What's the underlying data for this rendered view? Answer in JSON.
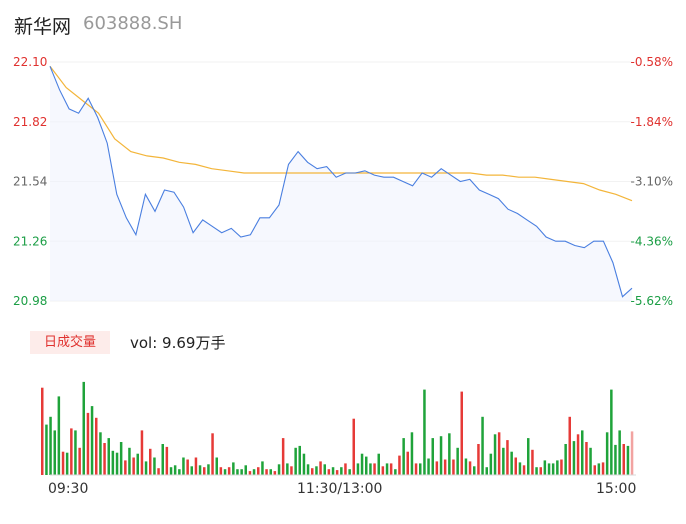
{
  "header": {
    "name": "新华网",
    "code": "603888.SH"
  },
  "chart_data": {
    "type": "line",
    "price_axis": {
      "ticks": [
        "22.10",
        "21.82",
        "21.54",
        "21.26",
        "20.98"
      ],
      "values": [
        22.1,
        21.82,
        21.54,
        21.26,
        20.98
      ],
      "ylim": [
        20.98,
        22.1
      ]
    },
    "pct_axis": {
      "ticks": [
        "-0.58%",
        "-1.84%",
        "-3.10%",
        "-4.36%",
        "-5.62%"
      ]
    },
    "time_ticks": [
      "09:30",
      "11:30/13:00",
      "15:00"
    ],
    "series": [
      {
        "values": [
          22.08,
          21.97,
          21.88,
          21.86,
          21.93,
          21.84,
          21.72,
          21.48,
          21.37,
          21.29,
          21.48,
          21.4,
          21.5,
          21.49,
          21.42,
          21.3,
          21.36,
          21.33,
          21.3,
          21.32,
          21.28,
          21.29,
          21.37,
          21.37,
          21.43,
          21.62,
          21.68,
          21.63,
          21.6,
          21.61,
          21.56,
          21.58,
          21.58,
          21.59,
          21.57,
          21.56,
          21.56,
          21.54,
          21.52,
          21.58,
          21.56,
          21.6,
          21.57,
          21.54,
          21.55,
          21.5,
          21.48,
          21.46,
          21.41,
          21.39,
          21.36,
          21.33,
          21.28,
          21.26,
          21.26,
          21.24,
          21.23,
          21.26,
          21.26,
          21.16,
          21.0,
          21.04
        ]
      },
      {
        "values": [
          22.08,
          21.98,
          21.92,
          21.86,
          21.74,
          21.68,
          21.66,
          21.65,
          21.63,
          21.62,
          21.6,
          21.59,
          21.58,
          21.58,
          21.58,
          21.58,
          21.58,
          21.58,
          21.58,
          21.58,
          21.58,
          21.58,
          21.58,
          21.58,
          21.58,
          21.58,
          21.58,
          21.57,
          21.57,
          21.56,
          21.56,
          21.55,
          21.54,
          21.53,
          21.5,
          21.48,
          21.45
        ]
      }
    ],
    "volume": {
      "label": "日成交量",
      "total": "vol: 9.69万手",
      "bars": [
        0.9,
        0.52,
        0.6,
        0.46,
        0.81,
        0.24,
        0.23,
        0.48,
        0.46,
        0.28,
        0.96,
        0.64,
        0.71,
        0.59,
        0.44,
        0.33,
        0.38,
        0.25,
        0.23,
        0.34,
        0.15,
        0.28,
        0.18,
        0.22,
        0.46,
        0.14,
        0.27,
        0.18,
        0.07,
        0.32,
        0.29,
        0.08,
        0.1,
        0.06,
        0.18,
        0.16,
        0.09,
        0.18,
        0.1,
        0.08,
        0.11,
        0.43,
        0.18,
        0.08,
        0.06,
        0.08,
        0.13,
        0.06,
        0.06,
        0.1,
        0.04,
        0.06,
        0.08,
        0.14,
        0.06,
        0.06,
        0.04,
        0.11,
        0.38,
        0.12,
        0.09,
        0.28,
        0.3,
        0.22,
        0.11,
        0.07,
        0.09,
        0.14,
        0.11,
        0.06,
        0.08,
        0.05,
        0.08,
        0.12,
        0.06,
        0.58,
        0.12,
        0.22,
        0.19,
        0.12,
        0.12,
        0.22,
        0.09,
        0.12,
        0.12,
        0.06,
        0.2,
        0.38,
        0.24,
        0.44,
        0.12,
        0.12,
        0.88,
        0.17,
        0.38,
        0.14,
        0.4,
        0.16,
        0.43,
        0.16,
        0.28,
        0.86,
        0.17,
        0.14,
        0.09,
        0.32,
        0.6,
        0.08,
        0.22,
        0.42,
        0.44,
        0.28,
        0.36,
        0.24,
        0.18,
        0.13,
        0.1,
        0.38,
        0.26,
        0.08,
        0.08,
        0.15,
        0.12,
        0.12,
        0.15,
        0.16,
        0.32,
        0.6,
        0.35,
        0.42,
        0.46,
        0.34,
        0.28,
        0.1,
        0.12,
        0.13,
        0.44,
        0.88,
        0.31,
        0.46,
        0.32,
        0.3,
        0.45
      ],
      "up_color": "#e63a37",
      "down_color": "#1fa33a"
    },
    "line_color": "#4a7fe0",
    "avg_color": "#f3b53a",
    "up_color": "#e0322f",
    "down_color": "#1b9e45"
  }
}
